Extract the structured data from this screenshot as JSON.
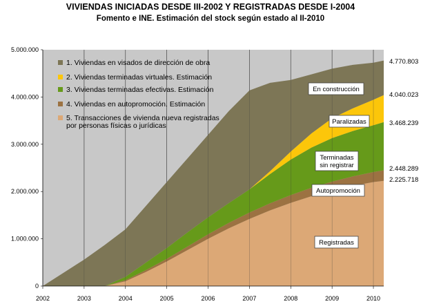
{
  "chart_data": {
    "type": "area",
    "title": "VIVIENDAS INICIADAS DESDE III-2002 Y REGISTRADAS DESDE I-2004",
    "subtitle": "Fomento e INE. Estimación del stock según estado al II-2010",
    "x": [
      2002.0,
      2002.5,
      2003.0,
      2003.5,
      2004.0,
      2004.5,
      2005.0,
      2005.5,
      2006.0,
      2006.5,
      2007.0,
      2007.5,
      2008.0,
      2008.5,
      2009.0,
      2009.5,
      2010.0,
      2010.25
    ],
    "xticks": [
      "2002",
      "2003",
      "2004",
      "2005",
      "2006",
      "2007",
      "2008",
      "2009",
      "2010"
    ],
    "ylim": [
      0,
      5000000
    ],
    "yticks": [
      "0",
      "1.000.000",
      "2.000.000",
      "3.000.000",
      "4.000.000",
      "5.000.000"
    ],
    "series": [
      {
        "name": "5. Transacciones de vivienda nueva registradas por personas físicas o jurídicas",
        "color": "#dca876",
        "values": [
          0,
          0,
          0,
          0,
          100000,
          300000,
          520000,
          760000,
          1000000,
          1220000,
          1420000,
          1600000,
          1760000,
          1900000,
          2020000,
          2120000,
          2200000,
          2225718
        ]
      },
      {
        "name": "4. Viviendas en autopromoción. Estimación",
        "color": "#9c7242",
        "values": [
          0,
          0,
          0,
          0,
          25000,
          40000,
          55000,
          75000,
          95000,
          115000,
          135000,
          150000,
          165000,
          180000,
          190000,
          200000,
          212000,
          222571
        ]
      },
      {
        "name": "3. Viviendas terminadas efectivas. Estimación",
        "color": "#669a1a",
        "values": [
          0,
          0,
          0,
          0,
          70000,
          160000,
          230000,
          300000,
          360000,
          420000,
          490000,
          620000,
          750000,
          850000,
          920000,
          960000,
          990000,
          1019950
        ]
      },
      {
        "name": "2. Viviendas terminadas virtuales. Estimación",
        "color": "#fcc60a",
        "values": [
          0,
          0,
          0,
          0,
          0,
          0,
          0,
          0,
          0,
          0,
          0,
          60000,
          170000,
          300000,
          420000,
          480000,
          540000,
          571784
        ]
      },
      {
        "name": "1. Viviendas en visados de dirección de obra",
        "color": "#7d7656",
        "values": [
          0,
          280000,
          560000,
          870000,
          1005000,
          1200000,
          1395000,
          1565000,
          1745000,
          1945000,
          2095000,
          1870000,
          1515000,
          1250000,
          1050000,
          920000,
          783000,
          730780
        ]
      }
    ],
    "end_labels": [
      "4.770.803",
      "4.040.023",
      "3.468.239",
      "2.448.289",
      "2.225.718"
    ],
    "annotations": [
      "En construcción",
      "Paralizadas",
      "Terminadas sin registrar",
      "Autopromoción",
      "Registradas"
    ],
    "background": "#c8c8c8",
    "grid": "vertical-only"
  }
}
